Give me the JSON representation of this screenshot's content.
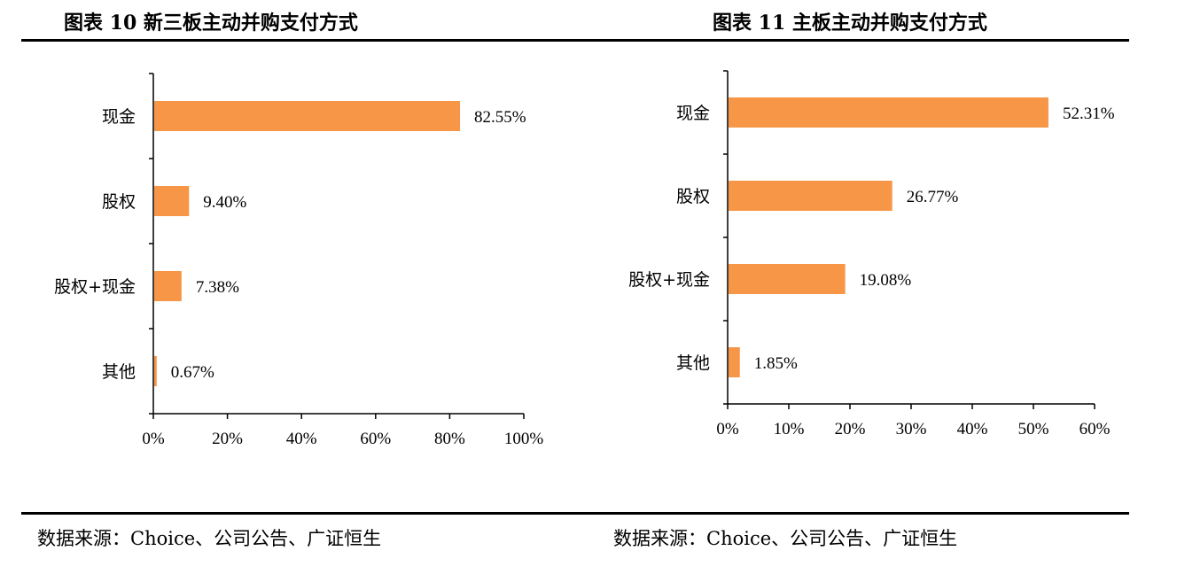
{
  "figures": [
    {
      "title": "图表 10  新三板主动并购支付方式",
      "source": "数据来源：Choice、公司公告、广证恒生"
    },
    {
      "title": "图表  11  主板主动并购支付方式",
      "source": "数据来源：Choice、公司公告、广证恒生"
    }
  ],
  "colors": {
    "bar": "#F79646",
    "axis": "#000000"
  },
  "chart_data": [
    {
      "type": "bar",
      "orientation": "horizontal",
      "title": "图表 10  新三板主动并购支付方式",
      "categories": [
        "现金",
        "股权",
        "股权+现金",
        "其他"
      ],
      "values": [
        82.55,
        9.4,
        7.38,
        0.67
      ],
      "value_labels": [
        "82.55%",
        "9.40%",
        "7.38%",
        "0.67%"
      ],
      "xlim": [
        0,
        100
      ],
      "xticks": [
        "0%",
        "20%",
        "40%",
        "60%",
        "80%",
        "100%"
      ],
      "grid": false,
      "legend": "none"
    },
    {
      "type": "bar",
      "orientation": "horizontal",
      "title": "图表  11  主板主动并购支付方式",
      "categories": [
        "现金",
        "股权",
        "股权+现金",
        "其他"
      ],
      "values": [
        52.31,
        26.77,
        19.08,
        1.85
      ],
      "value_labels": [
        "52.31%",
        "26.77%",
        "19.08%",
        "1.85%"
      ],
      "xlim": [
        0,
        60
      ],
      "xticks": [
        "0%",
        "10%",
        "20%",
        "30%",
        "40%",
        "50%",
        "60%"
      ],
      "grid": false,
      "legend": "none"
    }
  ]
}
